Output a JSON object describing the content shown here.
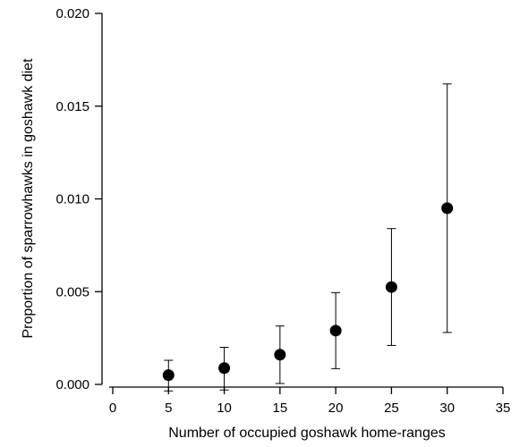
{
  "chart_data": {
    "type": "scatter",
    "title": "",
    "xlabel": "Number of occupied goshawk home-ranges",
    "ylabel": "Proportion of sparrowhawks in goshawk diet",
    "xlim": [
      0,
      35
    ],
    "ylim": [
      0,
      0.02
    ],
    "x_ticks": [
      "0",
      "5",
      "10",
      "15",
      "20",
      "25",
      "30",
      "35"
    ],
    "y_ticks": [
      "0.000",
      "0.005",
      "0.010",
      "0.015",
      "0.020"
    ],
    "grid": false,
    "series": [
      {
        "x": [
          5,
          10,
          15,
          20,
          25,
          30
        ],
        "y": [
          0.0005,
          0.00088,
          0.0016,
          0.0029,
          0.00525,
          0.0095
        ],
        "y_lower": [
          -0.00035,
          -0.0003,
          5e-05,
          0.00085,
          0.0021,
          0.0028
        ],
        "y_upper": [
          0.0013,
          0.002,
          0.00315,
          0.00495,
          0.0084,
          0.0162
        ]
      }
    ]
  }
}
